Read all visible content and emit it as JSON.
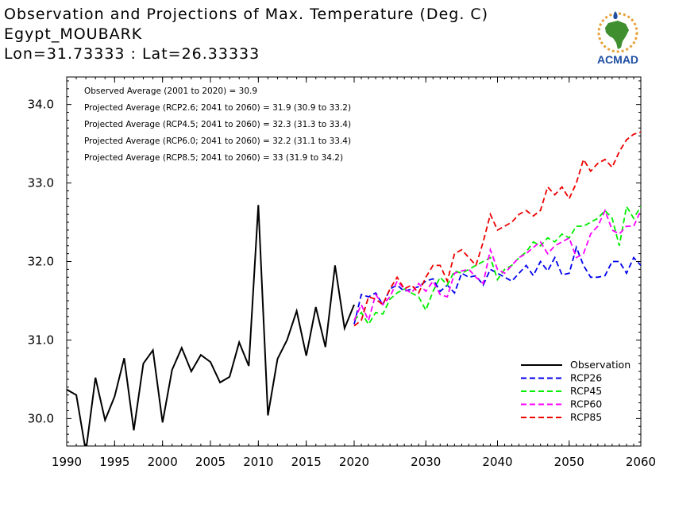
{
  "header": {
    "title_line1": "Observation and Projections of Max. Temperature (Deg. C)",
    "title_line2": "Egypt_MOUBARK",
    "title_line3": "Lon=31.73333 : Lat=26.33333"
  },
  "logo": {
    "text": "ACMAD"
  },
  "colors": {
    "observation": "#000000",
    "RCP26": "#0000ee",
    "RCP45": "#00ee00",
    "RCP60": "#ff00ff",
    "RCP85": "#ee0000",
    "logo_blue": "#1f4ea3",
    "logo_green": "#3f8f2f",
    "logo_orange": "#e8a23a"
  },
  "chart_data": {
    "type": "line",
    "xlim": [
      1990,
      2060
    ],
    "ylim": [
      29.65,
      34.35
    ],
    "y_ticks": [
      30.0,
      31.0,
      32.0,
      33.0,
      34.0
    ],
    "y_tick_labels": [
      "30.0",
      "31.0",
      "32.0",
      "33.0",
      "34.0"
    ],
    "x_ticks": [
      1990,
      1995,
      2000,
      2005,
      2010,
      2015,
      2020,
      2030,
      2040,
      2050,
      2060
    ],
    "x_tick_labels": [
      "1990",
      "1995",
      "2000",
      "2005",
      "2010",
      "2015",
      "2020",
      "2030",
      "2040",
      "2050",
      "2060"
    ],
    "annotations": [
      "Observed Average (2001 to 2020) = 30.9",
      "Projected Average (RCP2.6; 2041 to 2060) = 31.9 (30.9 to 33.2)",
      "Projected Average (RCP4.5; 2041 to 2060) = 32.3 (31.3 to 33.4)",
      "Projected Average (RCP6.0; 2041 to 2060) = 32.2 (31.1 to 33.4)",
      "Projected Average (RCP8.5; 2041 to 2060) = 33 (31.9 to 34.2)"
    ],
    "legend_position": "bottom-right",
    "series": [
      {
        "name": "Observation",
        "style": "solid",
        "x": [
          1990,
          1991,
          1992,
          1993,
          1994,
          1995,
          1996,
          1997,
          1998,
          1999,
          2000,
          2001,
          2002,
          2003,
          2004,
          2005,
          2006,
          2007,
          2008,
          2009,
          2010,
          2011,
          2012,
          2013,
          2014,
          2015,
          2016,
          2017,
          2018,
          2019,
          2020
        ],
        "values": [
          30.37,
          30.3,
          29.58,
          30.52,
          29.98,
          30.28,
          30.77,
          29.85,
          30.7,
          30.87,
          29.95,
          30.62,
          30.9,
          30.6,
          30.81,
          30.72,
          30.46,
          30.53,
          30.97,
          30.67,
          32.72,
          30.04,
          30.76,
          31.0,
          31.37,
          30.8,
          31.42,
          30.91,
          31.95,
          31.15,
          31.45
        ]
      },
      {
        "name": "RCP26",
        "style": "dashed",
        "x": [
          2020,
          2021,
          2022,
          2023,
          2024,
          2025,
          2026,
          2027,
          2028,
          2029,
          2030,
          2031,
          2032,
          2033,
          2034,
          2035,
          2036,
          2037,
          2038,
          2039,
          2040,
          2041,
          2042,
          2043,
          2044,
          2045,
          2046,
          2047,
          2048,
          2049,
          2050,
          2051,
          2052,
          2053,
          2054,
          2055,
          2056,
          2057,
          2058,
          2059,
          2060
        ],
        "values": [
          31.2,
          31.58,
          31.55,
          31.6,
          31.45,
          31.65,
          31.7,
          31.62,
          31.65,
          31.68,
          31.75,
          31.78,
          31.62,
          31.7,
          31.6,
          31.85,
          31.8,
          31.82,
          31.7,
          31.9,
          31.85,
          31.8,
          31.75,
          31.85,
          31.95,
          31.82,
          32.0,
          31.88,
          32.05,
          31.83,
          31.85,
          32.18,
          31.95,
          31.8,
          31.8,
          31.82,
          32.0,
          32.0,
          31.85,
          32.05,
          31.95
        ]
      },
      {
        "name": "RCP45",
        "style": "dashed",
        "x": [
          2020,
          2021,
          2022,
          2023,
          2024,
          2025,
          2026,
          2027,
          2028,
          2029,
          2030,
          2031,
          2032,
          2033,
          2034,
          2035,
          2036,
          2037,
          2038,
          2039,
          2040,
          2041,
          2042,
          2043,
          2044,
          2045,
          2046,
          2047,
          2048,
          2049,
          2050,
          2051,
          2052,
          2053,
          2054,
          2055,
          2056,
          2057,
          2058,
          2059,
          2060
        ],
        "values": [
          31.25,
          31.35,
          31.2,
          31.35,
          31.33,
          31.52,
          31.6,
          31.65,
          31.6,
          31.55,
          31.38,
          31.62,
          31.8,
          31.7,
          31.88,
          31.85,
          31.9,
          31.95,
          32.0,
          32.05,
          31.77,
          31.9,
          31.95,
          32.05,
          32.12,
          32.25,
          32.2,
          32.3,
          32.25,
          32.35,
          32.3,
          32.45,
          32.45,
          32.5,
          32.55,
          32.65,
          32.55,
          32.2,
          32.7,
          32.55,
          32.7
        ]
      },
      {
        "name": "RCP60",
        "style": "dashed",
        "x": [
          2020,
          2021,
          2022,
          2023,
          2024,
          2025,
          2026,
          2027,
          2028,
          2029,
          2030,
          2031,
          2032,
          2033,
          2034,
          2035,
          2036,
          2037,
          2038,
          2039,
          2040,
          2041,
          2042,
          2043,
          2044,
          2045,
          2046,
          2047,
          2048,
          2049,
          2050,
          2051,
          2052,
          2053,
          2054,
          2055,
          2056,
          2057,
          2058,
          2059,
          2060
        ],
        "values": [
          31.25,
          31.45,
          31.25,
          31.58,
          31.45,
          31.55,
          31.75,
          31.65,
          31.6,
          31.72,
          31.62,
          31.75,
          31.58,
          31.55,
          31.85,
          31.88,
          31.9,
          31.8,
          31.72,
          32.15,
          31.9,
          31.85,
          31.95,
          32.05,
          32.1,
          32.18,
          32.25,
          32.1,
          32.2,
          32.25,
          32.3,
          32.05,
          32.1,
          32.35,
          32.45,
          32.65,
          32.4,
          32.35,
          32.45,
          32.45,
          32.65
        ]
      },
      {
        "name": "RCP85",
        "style": "dashed",
        "x": [
          2020,
          2021,
          2022,
          2023,
          2024,
          2025,
          2026,
          2027,
          2028,
          2029,
          2030,
          2031,
          2032,
          2033,
          2034,
          2035,
          2036,
          2037,
          2038,
          2039,
          2040,
          2041,
          2042,
          2043,
          2044,
          2045,
          2046,
          2047,
          2048,
          2049,
          2050,
          2051,
          2052,
          2053,
          2054,
          2055,
          2056,
          2057,
          2058,
          2059,
          2060
        ],
        "values": [
          31.18,
          31.25,
          31.55,
          31.52,
          31.45,
          31.65,
          31.8,
          31.65,
          31.7,
          31.6,
          31.8,
          31.95,
          31.95,
          31.75,
          32.1,
          32.15,
          32.05,
          31.95,
          32.25,
          32.6,
          32.4,
          32.45,
          32.5,
          32.6,
          32.65,
          32.58,
          32.65,
          32.95,
          32.85,
          32.95,
          32.8,
          33.0,
          33.3,
          33.15,
          33.25,
          33.3,
          33.2,
          33.4,
          33.55,
          33.62,
          33.65
        ]
      }
    ]
  }
}
